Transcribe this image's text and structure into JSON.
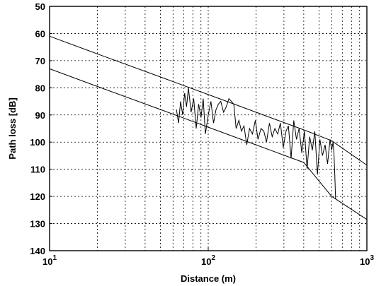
{
  "chart_data": {
    "type": "line",
    "title": "",
    "xlabel": "Distance (m)",
    "ylabel": "Path loss [dB]",
    "x_scale": "log",
    "y_inverted": true,
    "xlim": [
      10,
      1000
    ],
    "ylim": [
      50,
      140
    ],
    "x_ticks": [
      {
        "base": "10",
        "exp": "1"
      },
      {
        "base": "10",
        "exp": "2"
      },
      {
        "base": "10",
        "exp": "3"
      }
    ],
    "y_ticks": [
      "50",
      "60",
      "70",
      "80",
      "90",
      "100",
      "110",
      "120",
      "130",
      "140"
    ],
    "grid": true,
    "legend": false,
    "series": [
      {
        "style": "upper-bound",
        "x": [
          10,
          20,
          50,
          100,
          200,
          400,
          600,
          1000
        ],
        "y": [
          61,
          67.5,
          76,
          82.5,
          89,
          95.5,
          99.5,
          108.5
        ]
      },
      {
        "style": "lower-bound",
        "x": [
          10,
          20,
          50,
          100,
          200,
          400,
          600,
          1000
        ],
        "y": [
          73,
          79.5,
          88,
          94.5,
          101,
          107.5,
          120,
          128.5
        ]
      },
      {
        "style": "measured",
        "x": [
          63,
          65,
          67,
          69,
          71,
          73,
          75,
          78,
          81,
          84,
          87,
          90,
          93,
          96,
          100,
          104,
          108,
          112,
          116,
          120,
          125,
          130,
          135,
          140,
          145,
          150,
          156,
          162,
          168,
          175,
          182,
          190,
          198,
          206,
          215,
          224,
          233,
          243,
          253,
          263,
          274,
          285,
          297,
          309,
          320,
          333,
          346,
          360,
          374,
          389,
          404,
          420,
          436,
          453,
          470,
          488,
          506,
          525,
          545,
          565,
          586,
          600,
          612,
          620,
          628,
          635
        ],
        "y": [
          88,
          93,
          85,
          90,
          82,
          87,
          80,
          89,
          84,
          95,
          86,
          91,
          84,
          97,
          90,
          85,
          93,
          88,
          86,
          85,
          89,
          87,
          84,
          85,
          86,
          95,
          92,
          96,
          94,
          101,
          95,
          97,
          92,
          99,
          95,
          96,
          100,
          93,
          98,
          95,
          97,
          93,
          102,
          96,
          94,
          106,
          92,
          99,
          95,
          104,
          96,
          110,
          98,
          103,
          96,
          112,
          99,
          105,
          101,
          108,
          99,
          103,
          100,
          104,
          112,
          121
        ]
      }
    ]
  }
}
